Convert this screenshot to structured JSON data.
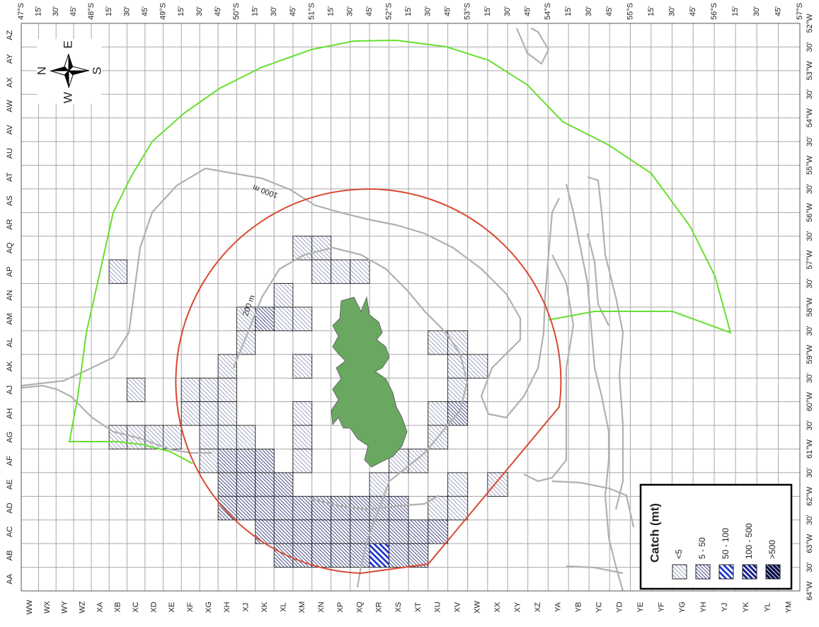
{
  "map": {
    "top_axis_labels": [
      "47°S",
      "15'",
      "30'",
      "45'",
      "48°S",
      "15'",
      "30'",
      "45'",
      "49°S",
      "15'",
      "30'",
      "45'",
      "50°S",
      "15'",
      "30'",
      "45'",
      "51°S",
      "15'",
      "30'",
      "45'",
      "52°S",
      "15'",
      "30'",
      "45'",
      "53°S",
      "15'",
      "30'",
      "45'",
      "54°S",
      "15'",
      "30'",
      "45'",
      "55°S",
      "15'",
      "30'",
      "45'",
      "56°S",
      "15'",
      "30'",
      "45'",
      "57°S"
    ],
    "right_axis_labels": [
      "52°W",
      "30'",
      "53°W",
      "30'",
      "54°W",
      "30'",
      "55°W",
      "30'",
      "56°W",
      "30'",
      "57°W",
      "30'",
      "58°W",
      "30'",
      "59°W",
      "30'",
      "60°W",
      "30'",
      "61°W",
      "30'",
      "62°W",
      "30'",
      "63°W",
      "30'",
      "64°W"
    ],
    "bottom_axis_labels": [
      "WW",
      "WX",
      "WY",
      "WZ",
      "XA",
      "XB",
      "XC",
      "XD",
      "XE",
      "XF",
      "XG",
      "XH",
      "XJ",
      "XK",
      "XL",
      "XM",
      "XN",
      "XP",
      "XQ",
      "XR",
      "XS",
      "XT",
      "XU",
      "XV",
      "XW",
      "XX",
      "XY",
      "XZ",
      "YA",
      "YB",
      "YC",
      "YD",
      "YE",
      "YF",
      "YG",
      "YH",
      "YJ",
      "YK",
      "YL",
      "YM"
    ],
    "left_axis_labels": [
      "AZ",
      "AY",
      "AX",
      "AW",
      "AV",
      "AU",
      "AT",
      "AS",
      "AR",
      "AQ",
      "AP",
      "AN",
      "AM",
      "AL",
      "AK",
      "AJ",
      "AH",
      "AG",
      "AF",
      "AE",
      "AD",
      "AC",
      "AB",
      "AA"
    ],
    "compass": {
      "north": "N",
      "east": "E",
      "south": "S",
      "west": "W"
    },
    "contour_labels": [
      "1000 m",
      "200 m"
    ],
    "legend": {
      "title": "Catch (mt)",
      "classes": [
        {
          "label": "<5",
          "color": "#8e94b8",
          "cells": [
            {
              "col": "XM",
              "row": "AQ"
            },
            {
              "col": "XN",
              "row": "AQ"
            },
            {
              "col": "XB",
              "row": "AP"
            },
            {
              "col": "XN",
              "row": "AP"
            },
            {
              "col": "XP",
              "row": "AP"
            },
            {
              "col": "XQ",
              "row": "AP"
            },
            {
              "col": "XL",
              "row": "AN"
            },
            {
              "col": "XJ",
              "row": "AM"
            },
            {
              "col": "XL",
              "row": "AM"
            },
            {
              "col": "XM",
              "row": "AM"
            },
            {
              "col": "XJ",
              "row": "AL"
            },
            {
              "col": "XU",
              "row": "AL"
            },
            {
              "col": "XV",
              "row": "AL"
            },
            {
              "col": "XH",
              "row": "AK"
            },
            {
              "col": "XM",
              "row": "AK"
            },
            {
              "col": "XV",
              "row": "AK"
            },
            {
              "col": "XW",
              "row": "AK"
            },
            {
              "col": "XC",
              "row": "AJ"
            },
            {
              "col": "XF",
              "row": "AJ"
            },
            {
              "col": "XG",
              "row": "AJ"
            },
            {
              "col": "XH",
              "row": "AJ"
            },
            {
              "col": "XV",
              "row": "AJ"
            },
            {
              "col": "XF",
              "row": "AH"
            },
            {
              "col": "XG",
              "row": "AH"
            },
            {
              "col": "XH",
              "row": "AH"
            },
            {
              "col": "XM",
              "row": "AH"
            },
            {
              "col": "XU",
              "row": "AH"
            },
            {
              "col": "XB",
              "row": "AG"
            },
            {
              "col": "XC",
              "row": "AG"
            },
            {
              "col": "XD",
              "row": "AG"
            },
            {
              "col": "XE",
              "row": "AG"
            },
            {
              "col": "XG",
              "row": "AG"
            },
            {
              "col": "XH",
              "row": "AG"
            },
            {
              "col": "XJ",
              "row": "AG"
            },
            {
              "col": "XM",
              "row": "AG"
            },
            {
              "col": "XU",
              "row": "AG"
            },
            {
              "col": "XG",
              "row": "AF"
            },
            {
              "col": "XM",
              "row": "AF"
            },
            {
              "col": "XS",
              "row": "AF"
            },
            {
              "col": "XT",
              "row": "AF"
            },
            {
              "col": "XR",
              "row": "AE"
            },
            {
              "col": "XV",
              "row": "AE"
            },
            {
              "col": "XX",
              "row": "AE"
            },
            {
              "col": "XU",
              "row": "AD"
            },
            {
              "col": "XV",
              "row": "AD"
            }
          ]
        },
        {
          "label": "5 - 50",
          "color": "#4a5088",
          "cells": [
            {
              "col": "XK",
              "row": "AM"
            },
            {
              "col": "XV",
              "row": "AH"
            },
            {
              "col": "XH",
              "row": "AF"
            },
            {
              "col": "XJ",
              "row": "AF"
            },
            {
              "col": "XK",
              "row": "AF"
            },
            {
              "col": "XH",
              "row": "AE"
            },
            {
              "col": "XJ",
              "row": "AE"
            },
            {
              "col": "XK",
              "row": "AE"
            },
            {
              "col": "XL",
              "row": "AE"
            },
            {
              "col": "XH",
              "row": "AD"
            },
            {
              "col": "XJ",
              "row": "AD"
            },
            {
              "col": "XK",
              "row": "AD"
            },
            {
              "col": "XL",
              "row": "AD"
            },
            {
              "col": "XM",
              "row": "AD"
            },
            {
              "col": "XN",
              "row": "AD"
            },
            {
              "col": "XP",
              "row": "AD"
            },
            {
              "col": "XQ",
              "row": "AD"
            },
            {
              "col": "XR",
              "row": "AD"
            },
            {
              "col": "XS",
              "row": "AD"
            },
            {
              "col": "XK",
              "row": "AC"
            },
            {
              "col": "XL",
              "row": "AC"
            },
            {
              "col": "XM",
              "row": "AC"
            },
            {
              "col": "XN",
              "row": "AC"
            },
            {
              "col": "XP",
              "row": "AC"
            },
            {
              "col": "XQ",
              "row": "AC"
            },
            {
              "col": "XR",
              "row": "AC"
            },
            {
              "col": "XS",
              "row": "AC"
            },
            {
              "col": "XT",
              "row": "AC"
            },
            {
              "col": "XU",
              "row": "AC"
            },
            {
              "col": "XL",
              "row": "AB"
            },
            {
              "col": "XM",
              "row": "AB"
            },
            {
              "col": "XN",
              "row": "AB"
            },
            {
              "col": "XP",
              "row": "AB"
            },
            {
              "col": "XQ",
              "row": "AB"
            },
            {
              "col": "XS",
              "row": "AB"
            },
            {
              "col": "XT",
              "row": "AB"
            }
          ]
        },
        {
          "label": "50 - 100",
          "color": "#1a30d0",
          "cells": [
            {
              "col": "XR",
              "row": "AB"
            }
          ]
        },
        {
          "label": "100 - 500",
          "color": "#182090",
          "cells": []
        },
        {
          "label": ">500",
          "color": "#0a1048",
          "cells": []
        }
      ]
    }
  }
}
